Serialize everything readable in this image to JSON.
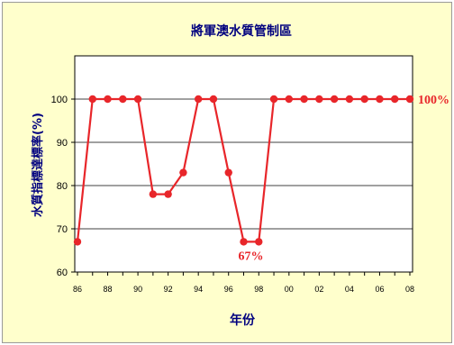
{
  "chart_data": {
    "type": "line",
    "title": "將軍澳水質管制區",
    "xlabel": "年份",
    "ylabel": "水質指標達標率(%)",
    "x": [
      "86",
      "87",
      "88",
      "89",
      "90",
      "91",
      "92",
      "93",
      "94",
      "95",
      "96",
      "97",
      "98",
      "99",
      "00",
      "01",
      "02",
      "03",
      "04",
      "05",
      "06",
      "07",
      "08"
    ],
    "x_tick_labels": [
      "86",
      "88",
      "90",
      "92",
      "94",
      "96",
      "98",
      "00",
      "02",
      "04",
      "06",
      "08"
    ],
    "series": [
      {
        "values": [
          67,
          100,
          100,
          100,
          100,
          78,
          78,
          83,
          100,
          100,
          83,
          67,
          67,
          100,
          100,
          100,
          100,
          100,
          100,
          100,
          100,
          100,
          100
        ]
      }
    ],
    "ylim": [
      60,
      110
    ],
    "yticks": [
      60,
      70,
      80,
      90,
      100
    ],
    "grid": true,
    "annotations": [
      {
        "text": "67%",
        "x": "97",
        "y": 67
      },
      {
        "text": "100%",
        "x": "08",
        "y": 100
      }
    ],
    "colors": {
      "line": "#e8262a",
      "background": "#ffffcc",
      "plot_area": "#ffffff",
      "title": "#00007f"
    }
  }
}
